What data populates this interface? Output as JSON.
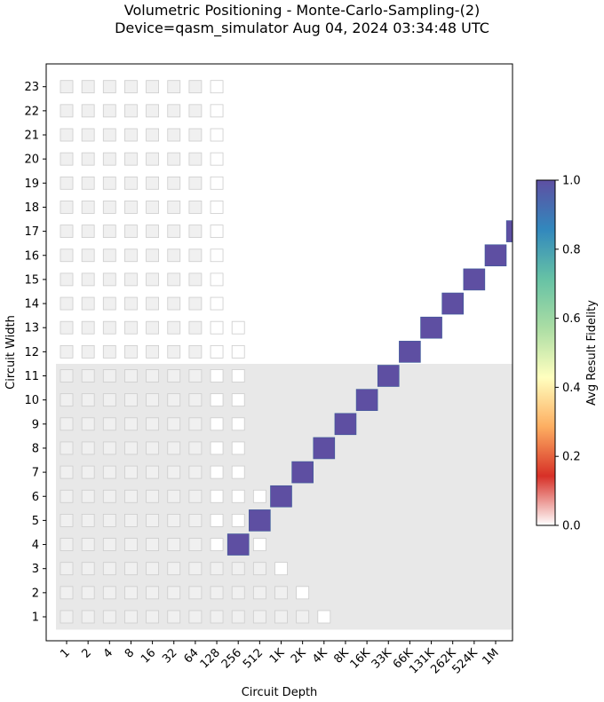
{
  "title": {
    "line1": "Volumetric Positioning - Monte-Carlo-Sampling-(2)",
    "line2": "Device=qasm_simulator  Aug 04, 2024 03:34:48 UTC"
  },
  "chart_data": {
    "type": "heatmap",
    "xlabel": "Circuit Depth",
    "ylabel": "Circuit Width",
    "x_ticks": [
      "1",
      "2",
      "4",
      "8",
      "16",
      "32",
      "64",
      "128",
      "256",
      "512",
      "1K",
      "2K",
      "4K",
      "8K",
      "16K",
      "33K",
      "66K",
      "131K",
      "262K",
      "524K",
      "1M"
    ],
    "y_ticks": [
      1,
      2,
      3,
      4,
      5,
      6,
      7,
      8,
      9,
      10,
      11,
      12,
      13,
      14,
      15,
      16,
      17,
      18,
      19,
      20,
      21,
      22,
      23
    ],
    "colorbar": {
      "label": "Avg Result Fidelity",
      "range": [
        0.0,
        1.0
      ],
      "ticks": [
        "0.0",
        "0.2",
        "0.4",
        "0.6",
        "0.8",
        "1.0"
      ],
      "colormap": [
        "#ffffff",
        "#d73027",
        "#fdae61",
        "#ffffbf",
        "#abdda4",
        "#66c2a5",
        "#3288bd",
        "#5e4fa2"
      ]
    },
    "volume_region": {
      "max_width": 11,
      "max_depth": 128
    },
    "measured_points": [
      {
        "width": 4,
        "depth": "256",
        "fidelity": 1.0
      },
      {
        "width": 5,
        "depth": "512",
        "fidelity": 1.0
      },
      {
        "width": 6,
        "depth": "1K",
        "fidelity": 1.0
      },
      {
        "width": 7,
        "depth": "2K",
        "fidelity": 1.0
      },
      {
        "width": 8,
        "depth": "4K",
        "fidelity": 1.0
      },
      {
        "width": 9,
        "depth": "8K",
        "fidelity": 1.0
      },
      {
        "width": 10,
        "depth": "16K",
        "fidelity": 1.0
      },
      {
        "width": 11,
        "depth": "33K",
        "fidelity": 1.0
      },
      {
        "width": 12,
        "depth": "66K",
        "fidelity": 1.0
      },
      {
        "width": 13,
        "depth": "131K",
        "fidelity": 1.0
      },
      {
        "width": 14,
        "depth": "262K",
        "fidelity": 1.0
      },
      {
        "width": 15,
        "depth": "524K",
        "fidelity": 1.0
      },
      {
        "width": 16,
        "depth": "1M",
        "fidelity": 1.0
      },
      {
        "width": 17,
        "depth": "2M",
        "fidelity": 1.0
      }
    ],
    "placeholder_squares": {
      "shaded_up_to_depth": "128",
      "note_columns_by_width": [
        {
          "widths": [
            1
          ],
          "max_depth": "4K"
        },
        {
          "widths": [
            2
          ],
          "max_depth": "2K"
        },
        {
          "widths": [
            3
          ],
          "max_depth": "1K"
        },
        {
          "widths": [
            4,
            5,
            6
          ],
          "max_depth": "512"
        },
        {
          "widths": [
            7,
            8,
            9,
            10,
            11,
            12,
            13
          ],
          "max_depth": "256"
        },
        {
          "widths": [
            14,
            15,
            16,
            17,
            18,
            19,
            20,
            21,
            22,
            23
          ],
          "max_depth": "128"
        }
      ]
    },
    "grid": false,
    "colorbar_position": "right"
  }
}
